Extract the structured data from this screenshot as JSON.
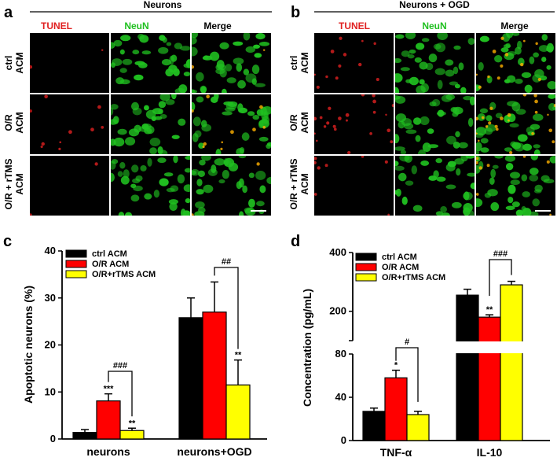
{
  "figure": {
    "panel_a": {
      "letter": "a",
      "title": "Neurons",
      "columns": [
        "TUNEL",
        "NeuN",
        "Merge"
      ],
      "rows": [
        {
          "line1": "ctrl",
          "line2": "ACM"
        },
        {
          "line1": "O/R",
          "line2": "ACM"
        },
        {
          "line1": "O/R + rTMS",
          "line2": "ACM"
        }
      ]
    },
    "panel_b": {
      "letter": "b",
      "title": "Neurons + OGD",
      "columns": [
        "TUNEL",
        "NeuN",
        "Merge"
      ],
      "rows": [
        {
          "line1": "ctrl",
          "line2": "ACM"
        },
        {
          "line1": "O/R",
          "line2": "ACM"
        },
        {
          "line1": "O/R + rTMS",
          "line2": "ACM"
        }
      ]
    },
    "panel_c_letter": "c",
    "panel_d_letter": "d",
    "colors": {
      "tunel": "#e02020",
      "neun": "#20c020",
      "ctrl": "#000000",
      "or": "#ff0000",
      "rtms": "#ffff00"
    }
  },
  "chart_data": [
    {
      "type": "bar",
      "panel": "c",
      "categories": [
        "neurons",
        "neurons+OGD"
      ],
      "series": [
        {
          "name": "ctrl ACM",
          "color": "#000000",
          "values": [
            1.4,
            25.8
          ],
          "errors": [
            0.6,
            4.2
          ]
        },
        {
          "name": "O/R ACM",
          "color": "#ff0000",
          "values": [
            8.1,
            27.0
          ],
          "errors": [
            1.5,
            6.4
          ]
        },
        {
          "name": "O/R+rTMS ACM",
          "color": "#ffff00",
          "values": [
            1.8,
            11.5
          ],
          "errors": [
            0.5,
            5.3
          ]
        }
      ],
      "ylabel": "Apoptotic neurons (%)",
      "xlabel": "",
      "ylim": [
        0,
        40
      ],
      "yticks": [
        "0",
        "10",
        "20",
        "30",
        "40"
      ],
      "annotations": [
        {
          "text": "***",
          "category": 0,
          "series": 1
        },
        {
          "text": "**",
          "category": 0,
          "series": 2
        },
        {
          "text": "**",
          "category": 1,
          "series": 2
        },
        {
          "text": "###",
          "category": 0,
          "from": 1,
          "to": 2
        },
        {
          "text": "##",
          "category": 1,
          "from": 1,
          "to": 2
        }
      ],
      "legend": "top-left"
    },
    {
      "type": "bar",
      "panel": "d",
      "categories": [
        "TNF-α",
        "IL-10"
      ],
      "series": [
        {
          "name": "ctrl ACM",
          "color": "#000000",
          "values": [
            27,
            255
          ],
          "errors": [
            3,
            20
          ]
        },
        {
          "name": "O/R ACM",
          "color": "#ff0000",
          "values": [
            58,
            180
          ],
          "errors": [
            7,
            8
          ]
        },
        {
          "name": "O/R+rTMS ACM",
          "color": "#ffff00",
          "values": [
            24,
            290
          ],
          "errors": [
            3,
            12
          ]
        }
      ],
      "ylabel": "Concentration (pg/mL)",
      "xlabel": "",
      "broken_axis": {
        "lower": [
          0,
          80
        ],
        "upper": [
          100,
          400
        ]
      },
      "yticks": [
        "0",
        "40",
        "80",
        "200",
        "400"
      ],
      "annotations": [
        {
          "text": "*",
          "category": 0,
          "series": 1
        },
        {
          "text": "**",
          "category": 1,
          "series": 1
        },
        {
          "text": "#",
          "category": 0,
          "from": 1,
          "to": 2
        },
        {
          "text": "###",
          "category": 1,
          "from": 1,
          "to": 2
        }
      ],
      "legend": "top-left"
    }
  ]
}
